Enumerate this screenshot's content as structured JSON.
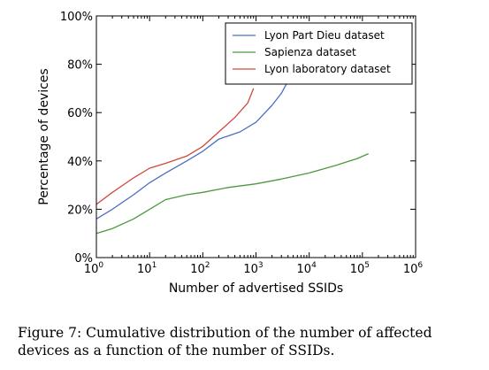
{
  "chart_data": {
    "type": "line",
    "xlabel": "Number of advertised SSIDs",
    "ylabel": "Percentage of devices",
    "x_scale": "log",
    "xlim": [
      1,
      1000000
    ],
    "ylim": [
      0,
      100
    ],
    "x_ticks": [
      {
        "base": "10",
        "exp": "0",
        "value": 1
      },
      {
        "base": "10",
        "exp": "1",
        "value": 10
      },
      {
        "base": "10",
        "exp": "2",
        "value": 100
      },
      {
        "base": "10",
        "exp": "3",
        "value": 1000
      },
      {
        "base": "10",
        "exp": "4",
        "value": 10000
      },
      {
        "base": "10",
        "exp": "5",
        "value": 100000
      },
      {
        "base": "10",
        "exp": "6",
        "value": 1000000
      }
    ],
    "y_ticks": [
      {
        "label": "0%",
        "value": 0
      },
      {
        "label": "20%",
        "value": 20
      },
      {
        "label": "40%",
        "value": 40
      },
      {
        "label": "60%",
        "value": 60
      },
      {
        "label": "80%",
        "value": 80
      },
      {
        "label": "100%",
        "value": 100
      }
    ],
    "grid": false,
    "legend_position": "top-right",
    "series": [
      {
        "name": "Lyon Part Dieu dataset",
        "color": "#4a6fc2",
        "x": [
          1,
          2,
          5,
          10,
          20,
          50,
          100,
          200,
          500,
          1000,
          2000,
          3000,
          4000
        ],
        "y": [
          16,
          20,
          26,
          31,
          35,
          40,
          44,
          49,
          52,
          56,
          63,
          68,
          73
        ]
      },
      {
        "name": "Sapienza dataset",
        "color": "#4a9a3c",
        "x": [
          1,
          2,
          5,
          10,
          20,
          50,
          100,
          300,
          1000,
          3000,
          10000,
          30000,
          80000,
          130000
        ],
        "y": [
          10,
          12,
          16,
          20,
          24,
          26,
          27,
          29,
          30.5,
          32.5,
          35,
          38,
          41,
          43
        ]
      },
      {
        "name": "Lyon laboratory dataset",
        "color": "#d0483c",
        "x": [
          1,
          2,
          5,
          10,
          20,
          50,
          100,
          200,
          400,
          700,
          900
        ],
        "y": [
          22,
          27,
          33,
          37,
          39,
          42,
          46,
          52,
          58,
          64,
          70
        ]
      }
    ]
  },
  "caption": "Figure 7: Cumulative distribution of the number of affected devices as a function of the number of SSIDs."
}
